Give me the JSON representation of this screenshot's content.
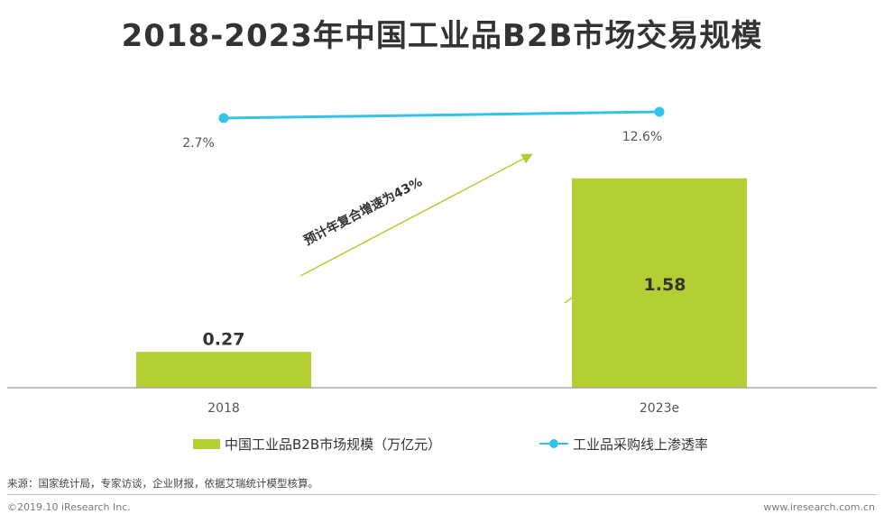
{
  "chart_data": {
    "type": "bar",
    "title": "2018-2023年中国工业品B2B市场交易规模",
    "categories": [
      "2018",
      "2023e"
    ],
    "series": [
      {
        "name": "中国工业品B2B市场规模（万亿元）",
        "type": "bar",
        "values": [
          0.27,
          1.58
        ],
        "value_labels": [
          "0.27",
          "1.58"
        ]
      },
      {
        "name": "工业品采购线上渗透率",
        "type": "line",
        "values": [
          2.7,
          12.6
        ],
        "value_labels": [
          "2.7%",
          "12.6%"
        ],
        "unit": "%"
      }
    ],
    "annotation": "预计年复合增速为43%",
    "ylim_bar": [
      0,
      1.8
    ],
    "ylim_line": [
      0,
      13.5
    ],
    "colors": {
      "bar": "#b3cf33",
      "line": "#33c3e8",
      "arrow": "#b3cf33"
    }
  },
  "legend": {
    "bar_label": "中国工业品B2B市场规模（万亿元）",
    "line_label": "工业品采购线上渗透率"
  },
  "source": "来源：国家统计局，专家访谈，企业财报，依据艾瑞统计模型核算。",
  "copyright": "©2019.10 iResearch Inc.",
  "website": "www.iresearch.com.cn"
}
